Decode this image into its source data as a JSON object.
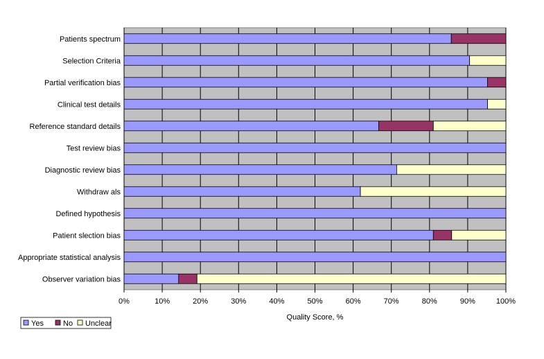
{
  "chart_data": {
    "type": "bar",
    "stacked": true,
    "orientation": "horizontal",
    "categories": [
      "Patients spectrum",
      "Selection Criteria",
      "Partial verification bias",
      "Clinical test details",
      "Reference standard details",
      "Test review  bias",
      "Diagnostic review  bias",
      "Withdraw als",
      "Defined hypothesis",
      "Patient slection bias",
      "Appropriate statistical analysis",
      "Observer variation bias"
    ],
    "series": [
      {
        "name": "Yes",
        "color": "#9999ff",
        "values": [
          85.7,
          90.5,
          95.2,
          95.2,
          66.7,
          100,
          71.4,
          61.9,
          100,
          81.0,
          100,
          14.3
        ]
      },
      {
        "name": "No",
        "color": "#993366",
        "values": [
          14.3,
          0,
          4.8,
          0,
          14.3,
          0,
          0,
          0,
          0,
          4.8,
          0,
          4.8
        ]
      },
      {
        "name": "Unclear",
        "color": "#ffffcc",
        "values": [
          0,
          9.5,
          0,
          4.8,
          19.0,
          0,
          28.6,
          38.1,
          0,
          14.2,
          0,
          80.9
        ]
      }
    ],
    "xlabel": "Quality Score, %",
    "xlim": [
      0,
      100
    ],
    "xticks": [
      "0%",
      "10%",
      "20%",
      "30%",
      "40%",
      "50%",
      "60%",
      "70%",
      "80%",
      "90%",
      "100%"
    ],
    "grid": true,
    "plot_background": "#c0c0c0",
    "legend_position": "bottom-left"
  }
}
